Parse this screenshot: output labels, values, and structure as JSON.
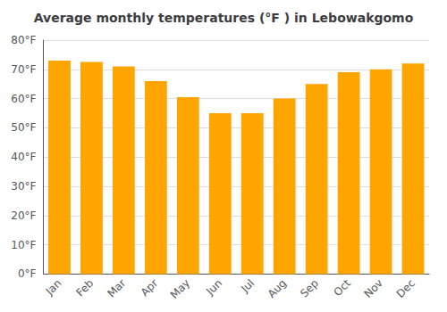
{
  "chart_data": {
    "type": "bar",
    "title": "Average monthly temperatures (°F ) in Lebowakgomo",
    "categories": [
      "Jan",
      "Feb",
      "Mar",
      "Apr",
      "May",
      "Jun",
      "Jul",
      "Aug",
      "Sep",
      "Oct",
      "Nov",
      "Dec"
    ],
    "values": [
      73,
      72.5,
      71,
      66,
      60.5,
      55,
      55,
      60,
      65,
      69,
      70,
      72
    ],
    "color": "#FFA500",
    "ylim": [
      0,
      80
    ],
    "yticks": [
      {
        "value": 0,
        "label": "0°F"
      },
      {
        "value": 10,
        "label": "10°F"
      },
      {
        "value": 20,
        "label": "20°F"
      },
      {
        "value": 30,
        "label": "30°F"
      },
      {
        "value": 40,
        "label": "40°F"
      },
      {
        "value": 50,
        "label": "50°F"
      },
      {
        "value": 60,
        "label": "60°F"
      },
      {
        "value": 70,
        "label": "70°F"
      },
      {
        "value": 80,
        "label": "80°F"
      }
    ],
    "grid": true
  }
}
